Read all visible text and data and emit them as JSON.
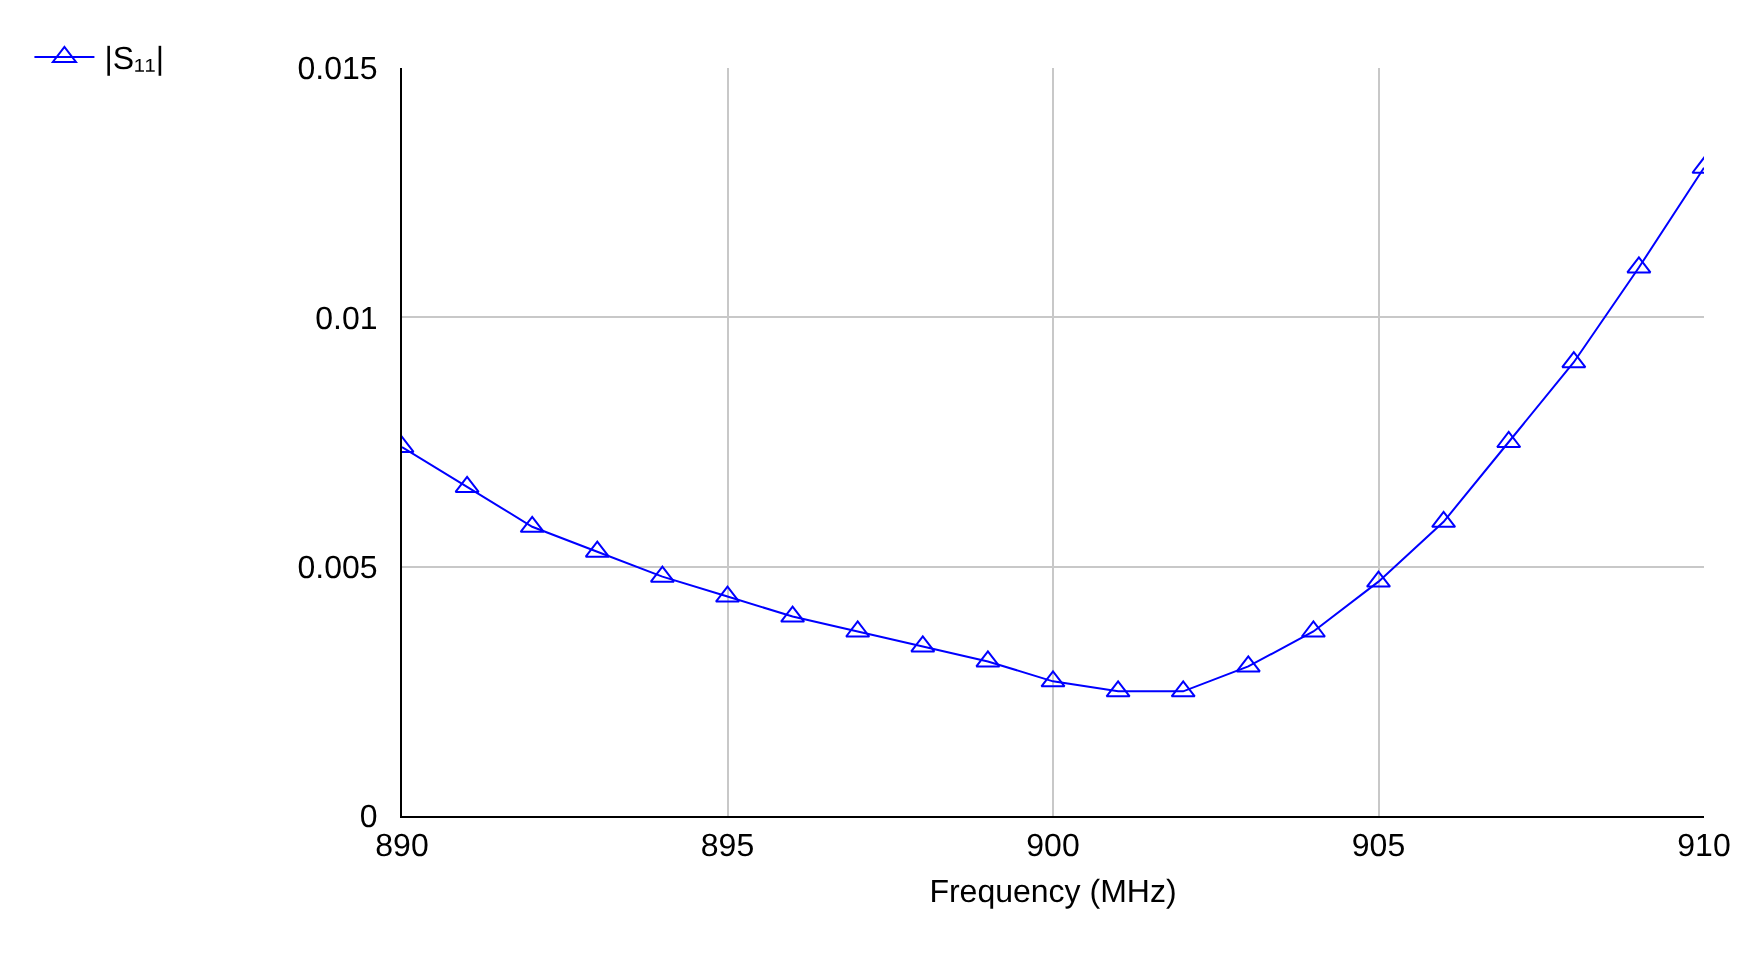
{
  "chart_data": {
    "type": "line",
    "xlabel": "Frequency (MHz)",
    "x": [
      890,
      891,
      892,
      893,
      894,
      895,
      896,
      897,
      898,
      899,
      900,
      901,
      902,
      903,
      904,
      905,
      906,
      907,
      908,
      909,
      910
    ],
    "series": [
      {
        "name": "|S₁₁|",
        "color": "#0000ff",
        "values": [
          0.0074,
          0.0066,
          0.0058,
          0.0053,
          0.0048,
          0.0044,
          0.004,
          0.0037,
          0.0034,
          0.0031,
          0.0027,
          0.0025,
          0.0025,
          0.003,
          0.0037,
          0.0047,
          0.0059,
          0.0075,
          0.0091,
          0.011,
          0.013
        ]
      }
    ],
    "xlim": [
      890,
      910
    ],
    "xticks": [
      890,
      895,
      900,
      905,
      910
    ],
    "ylim": [
      0,
      0.015
    ],
    "yticks": [
      0,
      0.005,
      0.01,
      0.015
    ],
    "grid": true,
    "legend": "top left",
    "marker": "triangle",
    "line_style": "solid"
  }
}
